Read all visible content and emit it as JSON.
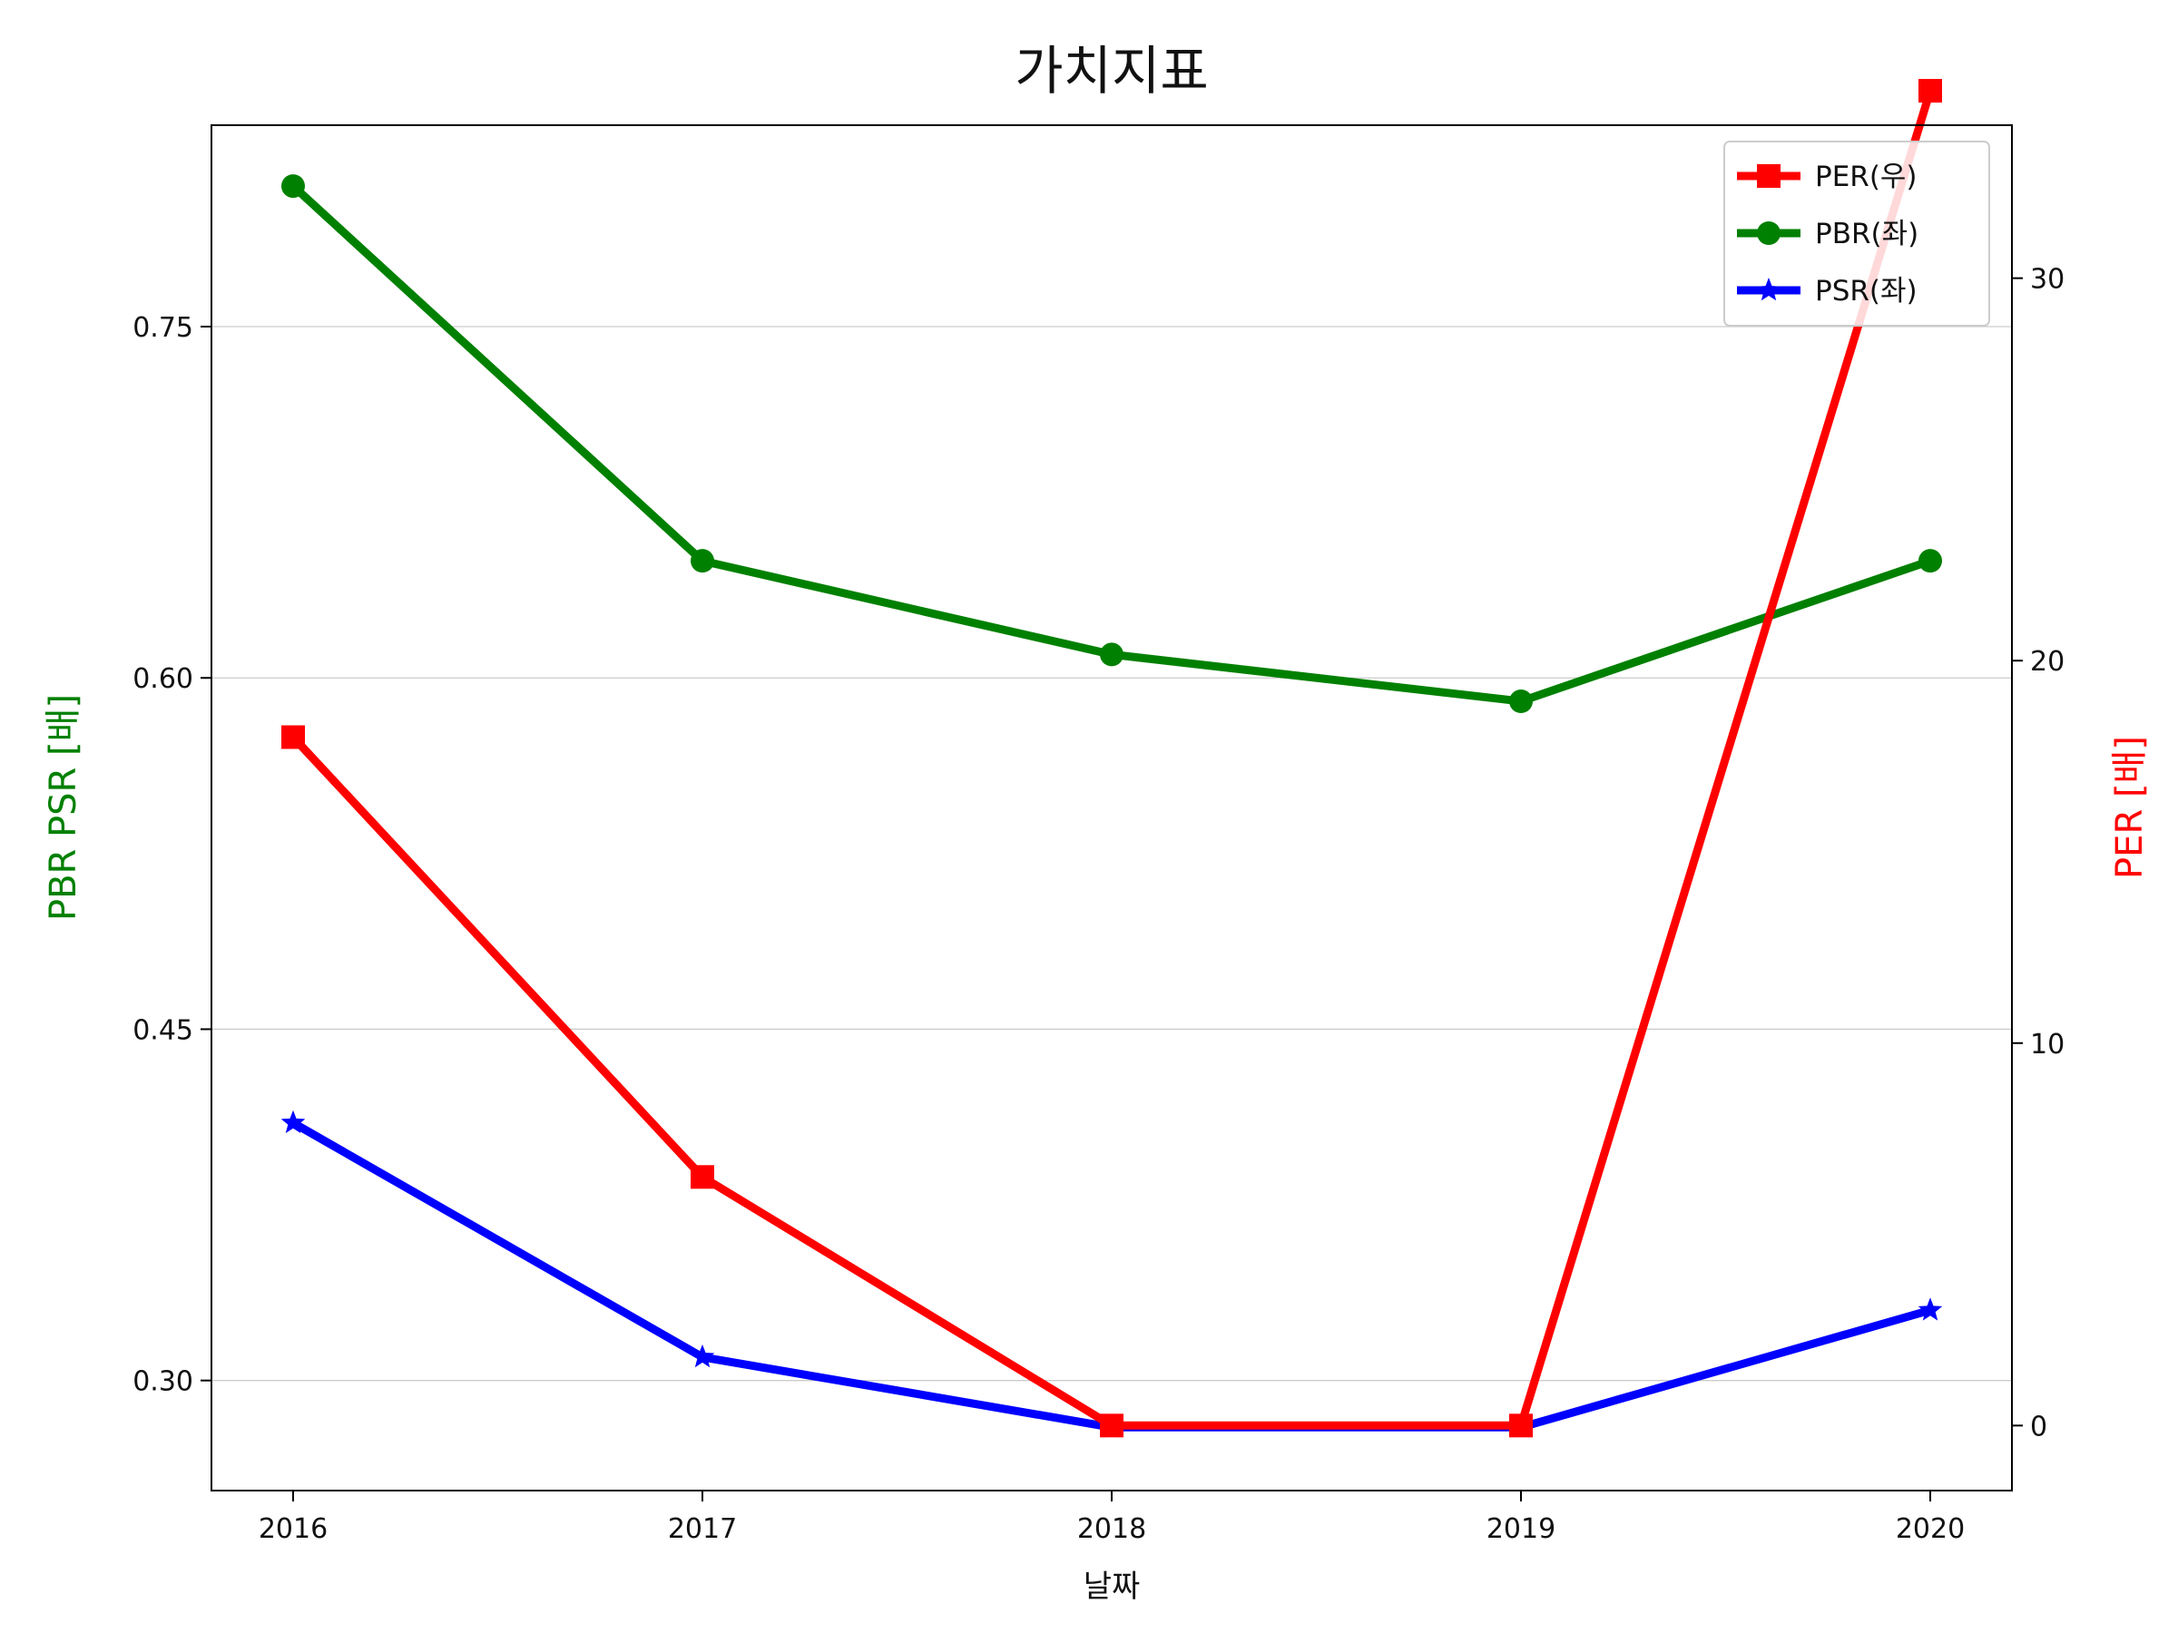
{
  "chart_data": {
    "type": "line",
    "title": "가치지표",
    "xlabel": "날짜",
    "ylabel_left": "PBR PSR [배]",
    "ylabel_right": "PER [배]",
    "left_label_color": "#008000",
    "right_label_color": "#ff0000",
    "x": [
      "2016",
      "2017",
      "2018",
      "2019",
      "2020"
    ],
    "ylim_left": [
      0.253,
      0.836
    ],
    "ylim_right": [
      -1.7,
      34.0
    ],
    "yticks_left": [
      "0.30",
      "0.45",
      "0.60",
      "0.75"
    ],
    "yticks_right": [
      "0",
      "10",
      "20",
      "30"
    ],
    "grid": "horizontal-left",
    "legend_position": "top-right",
    "series": [
      {
        "name": "PER(우)",
        "axis": "right",
        "color": "#ff0000",
        "marker": "square",
        "values": [
          18.0,
          6.5,
          0.0,
          0.0,
          34.9
        ]
      },
      {
        "name": "PBR(좌)",
        "axis": "left",
        "color": "#008000",
        "marker": "circle",
        "values": [
          0.81,
          0.65,
          0.61,
          0.59,
          0.65
        ]
      },
      {
        "name": "PSR(좌)",
        "axis": "left",
        "color": "#0000ff",
        "marker": "star",
        "values": [
          0.41,
          0.31,
          0.28,
          0.28,
          0.33
        ]
      }
    ]
  }
}
